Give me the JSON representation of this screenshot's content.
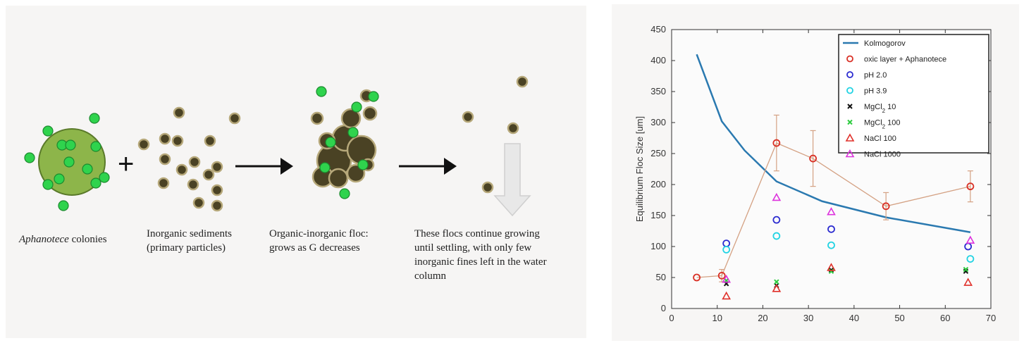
{
  "diagram": {
    "captions": {
      "aphanotece_italic": "Aphanotece",
      "aphanotece_rest": " colonies",
      "sediments_line1": "Inorganic sediments",
      "sediments_line2": "(primary particles)",
      "floc_line1": "Organic-inorganic floc:",
      "floc_line2": "grows as G decreases",
      "settle_line1": "These flocs continue growing",
      "settle_line2": "until settling, with only few",
      "settle_line3": "inorganic fines left in the water",
      "settle_line4": "column"
    },
    "plus_sign": "+",
    "colors": {
      "colony_fill": "#8db54a",
      "cell_green": "#2fd34d",
      "sediment_dark": "#4a4224",
      "sediment_ring": "#b6a87a",
      "arrow": "#111111",
      "settle_arrow": "#e6e6e6"
    }
  },
  "chart_data": {
    "type": "scatter",
    "ylabel": "Equilibrium Floc Size [um]",
    "xlabel": "",
    "xlim": [
      0,
      70
    ],
    "ylim": [
      0,
      450
    ],
    "xticks": [
      0,
      10,
      20,
      30,
      40,
      50,
      60,
      70
    ],
    "yticks": [
      0,
      50,
      100,
      150,
      200,
      250,
      300,
      350,
      400,
      450
    ],
    "legend_position": "top-right",
    "series": [
      {
        "name": "Kolmogorov",
        "marker": "line",
        "color": "#2a79b0",
        "x": [
          5.5,
          11,
          16,
          23,
          33,
          47,
          65.5
        ],
        "y": [
          410,
          302,
          255,
          205,
          173,
          147,
          123
        ]
      },
      {
        "name": "oxic layer + Aphanotece",
        "marker": "circle",
        "color": "#d93025",
        "connector_color": "#d4a183",
        "x": [
          5.5,
          11,
          23,
          31,
          47,
          65.5
        ],
        "y": [
          50,
          53,
          267,
          242,
          165,
          197
        ],
        "error": [
          0,
          10,
          45,
          45,
          22,
          25
        ]
      },
      {
        "name": "pH 2.0",
        "marker": "circle",
        "color": "#2b2bd0",
        "x": [
          12,
          23,
          35,
          65
        ],
        "y": [
          105,
          143,
          128,
          100
        ]
      },
      {
        "name": "pH 3.9",
        "marker": "circle",
        "color": "#22d3e3",
        "x": [
          12,
          23,
          35,
          65.5
        ],
        "y": [
          95,
          117,
          102,
          80
        ]
      },
      {
        "name": "MgCl",
        "marker": "x",
        "color": "#111111",
        "label_sub": "2",
        "label_suffix": " 10",
        "x": [
          12,
          23,
          35,
          64.5
        ],
        "y": [
          40,
          37,
          62,
          60
        ]
      },
      {
        "name": "MgCl",
        "marker": "x",
        "color": "#2ecc40",
        "label_sub": "2",
        "label_suffix": " 100",
        "x": [
          12,
          23,
          35,
          64.5
        ],
        "y": [
          45,
          43,
          60,
          63
        ]
      },
      {
        "name": "NaCl 100",
        "marker": "triangle",
        "color": "#e0302a",
        "x": [
          12,
          23,
          35,
          65
        ],
        "y": [
          20,
          32,
          66,
          42
        ]
      },
      {
        "name": "NaCl 1000",
        "marker": "triangle",
        "color": "#dd33dd",
        "x": [
          12,
          23,
          35,
          65.5
        ],
        "y": [
          47,
          179,
          156,
          110
        ]
      }
    ]
  }
}
